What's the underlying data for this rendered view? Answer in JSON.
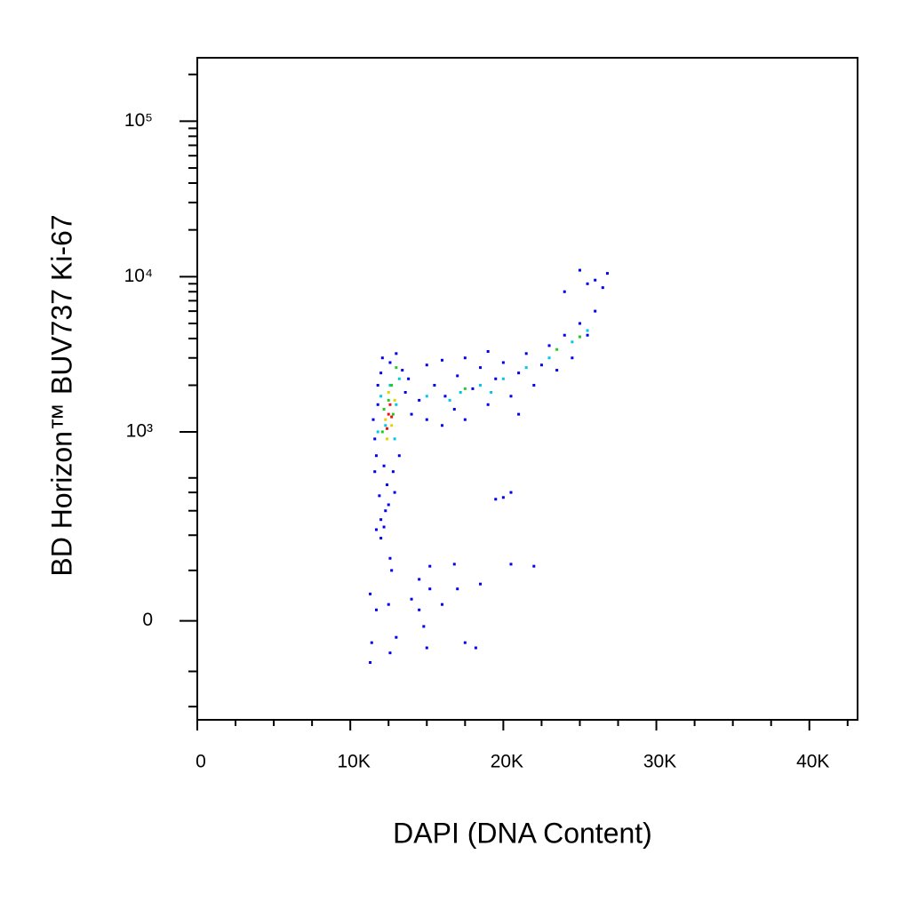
{
  "chart_data": {
    "type": "scatter",
    "x_label": "DAPI (DNA Content)",
    "y_label": "BD Horizon™ BUV737 Ki-67",
    "xlim": [
      0,
      43150
    ],
    "xticks": [
      0,
      {
        "value": 10000,
        "label": "10K"
      },
      {
        "value": 20000,
        "label": "20K"
      },
      {
        "value": 30000,
        "label": "30K"
      },
      {
        "value": 40000,
        "label": "40K"
      }
    ],
    "yscale": "biexponential",
    "ylim": [
      -250,
      256000
    ],
    "yticks": [
      0,
      {
        "value": 1000,
        "label": "10³"
      },
      {
        "value": 10000,
        "label": "10⁴"
      },
      {
        "value": 100000,
        "label": "10⁵"
      }
    ],
    "series": [
      {
        "color": "#0000ee",
        "x": [
          11600,
          11800,
          12000,
          11700,
          12200,
          11500,
          12100,
          12600,
          13000,
          13400,
          13200,
          12800,
          12400,
          11900,
          12300,
          12500,
          11600,
          13600,
          13800,
          11800,
          12900,
          12000,
          12200,
          14000,
          14500,
          15000,
          15500,
          16000,
          16200,
          16800,
          17000,
          17500,
          18000,
          18500,
          19000,
          19500,
          20000,
          20500,
          21000,
          21500,
          22000,
          22500,
          23000,
          23500,
          24000,
          24500,
          25000,
          25500,
          26000,
          26500,
          26000,
          25000,
          25500,
          24000,
          26800,
          16000,
          17500,
          19000,
          21000,
          15000,
          11300,
          11400,
          11300,
          11700,
          12500,
          13000,
          12600,
          14000,
          14500,
          14800,
          15000,
          15200,
          16000,
          17000,
          17500,
          18200,
          12600,
          12700,
          14500,
          15200,
          16800,
          20500,
          22000,
          18500,
          19500,
          20500,
          20000,
          12000,
          11700
        ],
        "values": [
          900,
          1500,
          2400,
          700,
          600,
          1200,
          3000,
          2800,
          3200,
          2500,
          700,
          550,
          450,
          380,
          300,
          330,
          550,
          1800,
          2200,
          2000,
          400,
          260,
          230,
          1300,
          1600,
          1200,
          2000,
          1100,
          1700,
          1400,
          2300,
          1200,
          1900,
          2600,
          1500,
          2200,
          2800,
          1700,
          2400,
          3200,
          2000,
          2700,
          3600,
          2500,
          4200,
          3000,
          5000,
          4200,
          6000,
          8500,
          9500,
          11000,
          9000,
          8000,
          10500,
          2900,
          3000,
          3300,
          1300,
          2700,
          50,
          -40,
          -80,
          20,
          30,
          -30,
          -60,
          40,
          20,
          -10,
          -50,
          60,
          30,
          60,
          -40,
          -50,
          130,
          100,
          80,
          110,
          115,
          115,
          110,
          70,
          360,
          400,
          370,
          190,
          220
        ]
      },
      {
        "color": "#00c8e6",
        "x": [
          12000,
          12300,
          12600,
          11800,
          13000,
          12900,
          15000,
          16500,
          17200,
          18500,
          20000,
          21500,
          23000,
          24500,
          25500,
          19200,
          13200
        ],
        "values": [
          1700,
          1100,
          2000,
          1000,
          1500,
          900,
          1700,
          1600,
          1800,
          2000,
          2200,
          2600,
          3000,
          3800,
          4500,
          1800,
          2200
        ]
      },
      {
        "color": "#22cc22",
        "x": [
          12200,
          12500,
          12800,
          12100,
          12700,
          13000,
          17500,
          23500,
          25000
        ],
        "values": [
          1400,
          1600,
          1300,
          1000,
          2000,
          2600,
          1900,
          3400,
          4100
        ]
      },
      {
        "color": "#e6d200",
        "x": [
          12300,
          12500,
          12700,
          12400,
          12900
        ],
        "values": [
          1200,
          1800,
          1100,
          900,
          1600
        ]
      },
      {
        "color": "#ee1111",
        "x": [
          12500,
          12600,
          12400,
          12700
        ],
        "values": [
          1300,
          1500,
          1050,
          1250
        ]
      }
    ]
  }
}
